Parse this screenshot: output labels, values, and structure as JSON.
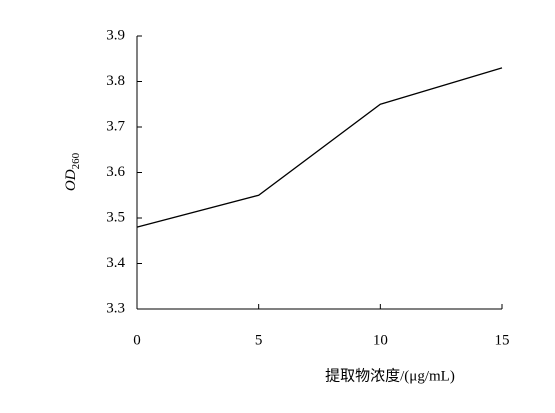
{
  "chart_data": {
    "type": "line",
    "ylabel": "OD",
    "ylabel_subscript": "260",
    "xlabel": "提取物浓度/(μg/mL)",
    "x": [
      0,
      5,
      10,
      15
    ],
    "series": [
      {
        "color": "#000000",
        "values": [
          3.48,
          3.55,
          3.75,
          3.83
        ]
      }
    ],
    "xlim": [
      0,
      15
    ],
    "xticks": [
      0,
      5,
      10,
      15
    ],
    "ylim": [
      3.3,
      3.9
    ],
    "yticks": [
      3.3,
      3.4,
      3.5,
      3.6,
      3.7,
      3.8,
      3.9
    ],
    "grid": false
  }
}
